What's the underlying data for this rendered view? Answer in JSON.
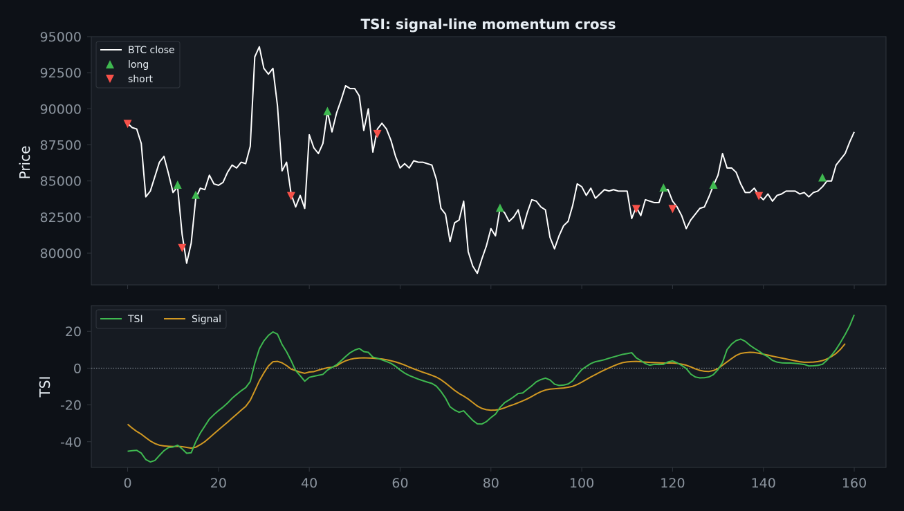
{
  "title": "TSI: signal-line momentum cross",
  "colors": {
    "figure_bg": "#0d1117",
    "axes_bg": "#161b22",
    "spine": "#30363d",
    "tick_text": "#8b949e",
    "label_text": "#e6edf3",
    "price_line": "#ffffff",
    "long_marker": "#3fb950",
    "short_marker": "#f85149",
    "tsi_line": "#3fb950",
    "signal_line": "#d29922"
  },
  "chart_data": [
    {
      "type": "line",
      "ylabel": "Price",
      "xlim": [
        -8,
        167
      ],
      "ylim": [
        77800,
        95000
      ],
      "yticks": [
        80000,
        82500,
        85000,
        87500,
        90000,
        92500,
        95000
      ],
      "xticks": [
        0,
        20,
        40,
        60,
        80,
        100,
        120,
        140,
        160
      ],
      "legend": {
        "placement": "top-left",
        "entries": [
          "BTC close",
          "long",
          "short"
        ]
      },
      "series": [
        {
          "name": "BTC close",
          "x_start": 0,
          "values": [
            89000,
            88700,
            88600,
            87600,
            83900,
            84300,
            85300,
            86300,
            86700,
            85500,
            84200,
            84600,
            81300,
            79300,
            80700,
            83800,
            84500,
            84400,
            85400,
            84800,
            84700,
            84900,
            85600,
            86100,
            85900,
            86300,
            86200,
            87400,
            93600,
            94300,
            92800,
            92400,
            92800,
            90200,
            85700,
            86300,
            84100,
            83200,
            84000,
            83100,
            88200,
            87300,
            86900,
            87600,
            89800,
            88400,
            89700,
            90600,
            91600,
            91400,
            91400,
            90900,
            88500,
            90000,
            87000,
            88600,
            89000,
            88600,
            87800,
            86700,
            85900,
            86200,
            85900,
            86400,
            86300,
            86300,
            86200,
            86100,
            85100,
            83100,
            82700,
            80800,
            82100,
            82300,
            83600,
            80100,
            79100,
            78600,
            79600,
            80500,
            81700,
            81200,
            83100,
            82800,
            82200,
            82500,
            83000,
            81700,
            82800,
            83700,
            83600,
            83200,
            83000,
            81100,
            80300,
            81200,
            81900,
            82200,
            83300,
            84800,
            84600,
            84000,
            84500,
            83800,
            84100,
            84400,
            84300,
            84400,
            84300,
            84300,
            84300,
            82400,
            83200,
            82600,
            83700,
            83600,
            83500,
            83500,
            84400,
            84400,
            83600,
            83200,
            82600,
            81700,
            82300,
            82700,
            83100,
            83200,
            83900,
            84700,
            85400,
            86900,
            85900,
            85900,
            85600,
            84800,
            84200,
            84200,
            84500,
            84000,
            83700,
            84100,
            83600,
            84000,
            84100,
            84300,
            84300,
            84300,
            84100,
            84200,
            83900,
            84200,
            84300,
            84600,
            85000,
            85000,
            86100,
            86500,
            86900,
            87700,
            88400
          ]
        }
      ],
      "markers": {
        "long": [
          [
            11,
            84700
          ],
          [
            15,
            84000
          ],
          [
            44,
            89800
          ],
          [
            82,
            83100
          ],
          [
            118,
            84500
          ],
          [
            129,
            84700
          ],
          [
            153,
            85200
          ]
        ],
        "short": [
          [
            0,
            89000
          ],
          [
            12,
            80400
          ],
          [
            36,
            84000
          ],
          [
            55,
            88300
          ],
          [
            112,
            83100
          ],
          [
            120,
            83100
          ],
          [
            139,
            84000
          ]
        ]
      }
    },
    {
      "type": "line",
      "ylabel": "TSI",
      "xlim": [
        -8,
        167
      ],
      "ylim": [
        -54,
        34
      ],
      "yticks": [
        -40,
        -20,
        0,
        20
      ],
      "xticks": [
        0,
        20,
        40,
        60,
        80,
        100,
        120,
        140,
        160
      ],
      "zero_line": true,
      "legend": {
        "placement": "top-left",
        "entries": [
          "TSI",
          "Signal"
        ]
      },
      "series": [
        {
          "name": "TSI",
          "x_start": 0,
          "values": [
            -45.2,
            -44.9,
            -44.7,
            -46.2,
            -49.7,
            -51.0,
            -50.2,
            -47.5,
            -44.9,
            -43.2,
            -42.9,
            -41.9,
            -43.9,
            -46.3,
            -46.0,
            -40.1,
            -35.3,
            -31.5,
            -27.7,
            -25.3,
            -23.1,
            -21.2,
            -19.0,
            -16.4,
            -14.3,
            -12.3,
            -10.6,
            -7.3,
            2.6,
            10.5,
            14.8,
            17.8,
            19.7,
            18.5,
            12.9,
            8.9,
            4.1,
            -1.3,
            -4.1,
            -7.1,
            -5.0,
            -4.4,
            -3.9,
            -3.4,
            -1.1,
            0.4,
            1.8,
            4.0,
            6.3,
            8.4,
            9.8,
            10.7,
            9.0,
            8.6,
            6.0,
            5.4,
            4.5,
            3.6,
            2.6,
            1.0,
            -1.0,
            -2.7,
            -4.0,
            -5.0,
            -6.0,
            -6.8,
            -7.6,
            -8.3,
            -9.8,
            -12.7,
            -16.3,
            -21.0,
            -22.8,
            -24.0,
            -23.2,
            -25.8,
            -28.4,
            -30.3,
            -30.4,
            -29.1,
            -26.9,
            -25.0,
            -21.4,
            -18.8,
            -17.3,
            -15.6,
            -13.8,
            -13.5,
            -11.5,
            -9.6,
            -7.4,
            -6.2,
            -5.4,
            -6.4,
            -8.7,
            -9.4,
            -9.2,
            -8.6,
            -6.9,
            -3.7,
            -0.8,
            0.9,
            2.5,
            3.5,
            4.0,
            4.6,
            5.4,
            6.1,
            6.8,
            7.5,
            7.9,
            8.4,
            5.6,
            4.1,
            2.5,
            1.6,
            2.1,
            2.0,
            2.1,
            3.4,
            3.9,
            2.9,
            1.5,
            -0.2,
            -3.2,
            -4.8,
            -5.3,
            -5.2,
            -4.8,
            -3.5,
            -0.8,
            3.1,
            10.1,
            13.1,
            15.0,
            15.8,
            14.6,
            12.5,
            10.8,
            9.3,
            7.5,
            6.2,
            4.2,
            3.3,
            2.9,
            2.8,
            2.8,
            2.6,
            2.3,
            2.0,
            1.2,
            1.3,
            1.5,
            2.1,
            4.3,
            7.0,
            10.2,
            14.1,
            18.3,
            23.0,
            29.0
          ]
        },
        {
          "name": "Signal",
          "x_start": 0,
          "values": [
            -30.5,
            -32.6,
            -34.4,
            -35.9,
            -37.8,
            -39.6,
            -41.0,
            -41.9,
            -42.3,
            -42.5,
            -42.6,
            -42.5,
            -42.7,
            -43.1,
            -43.5,
            -43.0,
            -41.6,
            -40.0,
            -37.9,
            -35.7,
            -33.6,
            -31.5,
            -29.4,
            -27.2,
            -25.1,
            -22.9,
            -20.8,
            -17.5,
            -12.3,
            -6.9,
            -2.6,
            1.2,
            3.5,
            3.7,
            2.9,
            1.4,
            -0.5,
            -1.3,
            -2.2,
            -2.8,
            -2.1,
            -1.9,
            -1.1,
            -0.4,
            0.2,
            0.5,
            1.2,
            2.8,
            4.0,
            4.8,
            5.3,
            5.5,
            5.6,
            5.5,
            5.4,
            5.2,
            5.0,
            4.6,
            4.0,
            3.4,
            2.6,
            1.7,
            0.6,
            -0.4,
            -1.3,
            -2.2,
            -3.0,
            -3.9,
            -4.9,
            -6.3,
            -8.1,
            -10.1,
            -12.1,
            -13.8,
            -15.2,
            -16.8,
            -18.7,
            -20.6,
            -21.9,
            -22.6,
            -22.9,
            -22.8,
            -22.4,
            -21.6,
            -20.6,
            -19.8,
            -18.8,
            -17.8,
            -16.7,
            -15.4,
            -14.0,
            -12.8,
            -11.9,
            -11.4,
            -11.2,
            -11.0,
            -10.8,
            -10.4,
            -9.9,
            -8.9,
            -7.6,
            -6.2,
            -4.8,
            -3.5,
            -2.2,
            -1.0,
            0.1,
            1.2,
            2.2,
            3.0,
            3.4,
            3.6,
            3.7,
            3.5,
            3.3,
            3.1,
            3.0,
            2.9,
            2.8,
            2.8,
            2.8,
            2.6,
            2.2,
            1.6,
            0.7,
            -0.4,
            -1.2,
            -1.7,
            -1.8,
            -1.3,
            -0.2,
            1.6,
            3.4,
            5.2,
            6.9,
            8.0,
            8.4,
            8.6,
            8.5,
            8.1,
            7.6,
            7.1,
            6.5,
            6.0,
            5.5,
            5.0,
            4.5,
            4.0,
            3.5,
            3.2,
            3.2,
            3.3,
            3.6,
            4.1,
            5.0,
            6.3,
            8.0,
            10.3,
            13.3
          ]
        }
      ]
    }
  ]
}
